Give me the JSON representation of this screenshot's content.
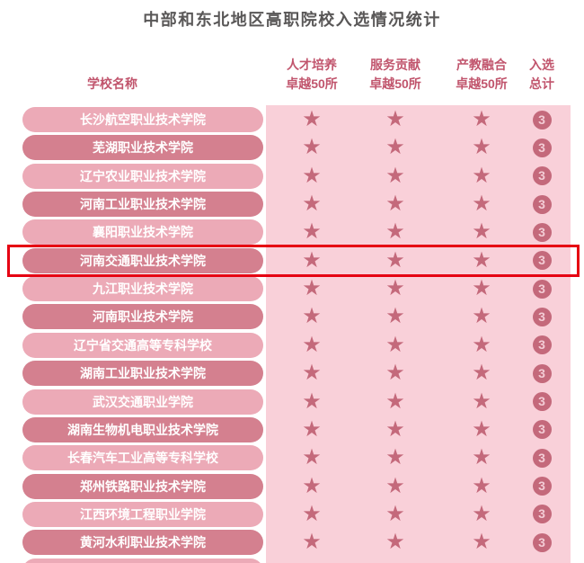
{
  "title": "中部和东北地区高职院校入选情况统计",
  "columns": {
    "school": "学校名称",
    "talent": {
      "line1": "人才培养",
      "line2": "卓越50所"
    },
    "service": {
      "line1": "服务贡献",
      "line2": "卓越50所"
    },
    "integration": {
      "line1": "产教融合",
      "line2": "卓越50所"
    },
    "total": {
      "line1": "入选",
      "line2": "总计"
    }
  },
  "star_symbol": "★",
  "highlighted_school": "河南交通职业技术学院",
  "colors": {
    "title_text": "#595757",
    "header_text": "#c1556d",
    "pill_light": "#ecaab7",
    "pill_dark": "#d4808f",
    "pill_text": "#ffffff",
    "table_background": "#f9d0d9",
    "star": "#c4697b",
    "badge_background": "#c4697b",
    "badge_text": "#f3ccd5",
    "highlight_border": "#e60012"
  },
  "chart_data": {
    "type": "table",
    "title": "中部和东北地区高职院校入选情况统计",
    "columns": [
      "学校名称",
      "人才培养卓越50所",
      "服务贡献卓越50所",
      "产教融合卓越50所",
      "入选总计"
    ],
    "highlighted_row_index": 5,
    "rows": [
      {
        "school": "长沙航空职业技术学院",
        "talent": 1,
        "service": 1,
        "integration": 1,
        "total": 3
      },
      {
        "school": "芜湖职业技术学院",
        "talent": 1,
        "service": 1,
        "integration": 1,
        "total": 3
      },
      {
        "school": "辽宁农业职业技术学院",
        "talent": 1,
        "service": 1,
        "integration": 1,
        "total": 3
      },
      {
        "school": "河南工业职业技术学院",
        "talent": 1,
        "service": 1,
        "integration": 1,
        "total": 3
      },
      {
        "school": "襄阳职业技术学院",
        "talent": 1,
        "service": 1,
        "integration": 1,
        "total": 3
      },
      {
        "school": "河南交通职业技术学院",
        "talent": 1,
        "service": 1,
        "integration": 1,
        "total": 3
      },
      {
        "school": "九江职业技术学院",
        "talent": 1,
        "service": 1,
        "integration": 1,
        "total": 3
      },
      {
        "school": "河南职业技术学院",
        "talent": 1,
        "service": 1,
        "integration": 1,
        "total": 3
      },
      {
        "school": "辽宁省交通高等专科学校",
        "talent": 1,
        "service": 1,
        "integration": 1,
        "total": 3
      },
      {
        "school": "湖南工业职业技术学院",
        "talent": 1,
        "service": 1,
        "integration": 1,
        "total": 3
      },
      {
        "school": "武汉交通职业学院",
        "talent": 1,
        "service": 1,
        "integration": 1,
        "total": 3
      },
      {
        "school": "湖南生物机电职业技术学院",
        "talent": 1,
        "service": 1,
        "integration": 1,
        "total": 3
      },
      {
        "school": "长春汽车工业高等专科学校",
        "talent": 1,
        "service": 1,
        "integration": 1,
        "total": 3
      },
      {
        "school": "郑州铁路职业技术学院",
        "talent": 1,
        "service": 1,
        "integration": 1,
        "total": 3
      },
      {
        "school": "江西环境工程职业学院",
        "talent": 1,
        "service": 1,
        "integration": 1,
        "total": 3
      },
      {
        "school": "黄河水利职业技术学院",
        "talent": 1,
        "service": 1,
        "integration": 1,
        "total": 3
      }
    ]
  }
}
